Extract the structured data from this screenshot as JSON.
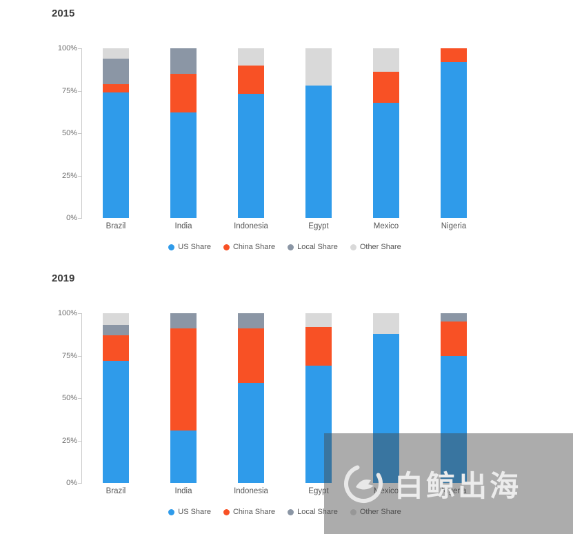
{
  "chart_data": [
    {
      "type": "bar",
      "stacked": true,
      "title": "2015",
      "categories": [
        "Brazil",
        "India",
        "Indonesia",
        "Egypt",
        "Mexico",
        "Nigeria"
      ],
      "y_ticks": [
        "100%",
        "75%",
        "50%",
        "25%",
        "0%"
      ],
      "ylim": [
        0,
        100
      ],
      "grid": false,
      "legend_position": "bottom",
      "series": [
        {
          "name": "US Share",
          "color": "#2F9BEA",
          "values": [
            74,
            62,
            73,
            78,
            68,
            92
          ]
        },
        {
          "name": "China Share",
          "color": "#F85125",
          "values": [
            5,
            23,
            17,
            0,
            18,
            8
          ]
        },
        {
          "name": "Local Share",
          "color": "#8B96A5",
          "values": [
            15,
            15,
            0,
            0,
            0,
            0
          ]
        },
        {
          "name": "Other Share",
          "color": "#D9D9D9",
          "values": [
            6,
            0,
            10,
            22,
            14,
            0
          ]
        }
      ]
    },
    {
      "type": "bar",
      "stacked": true,
      "title": "2019",
      "categories": [
        "Brazil",
        "India",
        "Indonesia",
        "Egypt",
        "Mexico",
        "Nigeria"
      ],
      "y_ticks": [
        "100%",
        "75%",
        "50%",
        "25%",
        "0%"
      ],
      "ylim": [
        0,
        100
      ],
      "grid": false,
      "legend_position": "bottom",
      "series": [
        {
          "name": "US Share",
          "color": "#2F9BEA",
          "values": [
            72,
            31,
            59,
            69,
            88,
            75
          ]
        },
        {
          "name": "China Share",
          "color": "#F85125",
          "values": [
            15,
            60,
            32,
            23,
            0,
            20
          ]
        },
        {
          "name": "Local Share",
          "color": "#8B96A5",
          "values": [
            6,
            9,
            9,
            0,
            0,
            5
          ]
        },
        {
          "name": "Other Share",
          "color": "#D9D9D9",
          "values": [
            7,
            0,
            0,
            8,
            12,
            0
          ]
        }
      ]
    }
  ],
  "watermark": {
    "text": "白鲸出海"
  }
}
